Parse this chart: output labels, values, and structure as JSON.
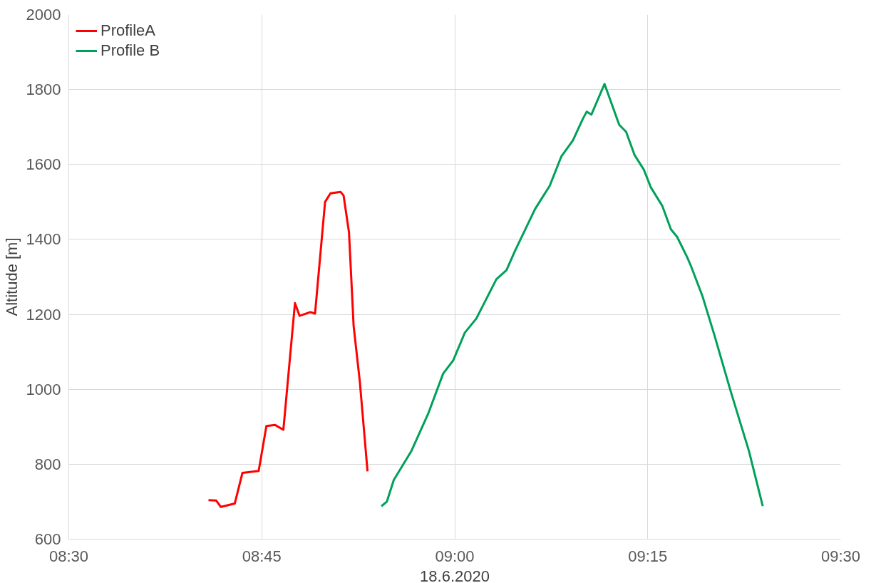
{
  "chart_data": {
    "type": "line",
    "xlabel": "18.6.2020",
    "ylabel": "Altitude [m]",
    "xlim": [
      8.5,
      9.5
    ],
    "xticks": [
      {
        "value": 8.5,
        "label": "08:30"
      },
      {
        "value": 8.75,
        "label": "08:45"
      },
      {
        "value": 9.0,
        "label": "09:00"
      },
      {
        "value": 9.25,
        "label": "09:15"
      },
      {
        "value": 9.5,
        "label": "09:30"
      }
    ],
    "ylim": [
      600,
      2000
    ],
    "yticks": [
      600,
      800,
      1000,
      1200,
      1400,
      1600,
      1800,
      2000
    ],
    "grid": true,
    "legend": "top left",
    "marker": "none",
    "line_style": "solid",
    "series": [
      {
        "name": "ProfileA",
        "color": "#ff0000",
        "x": [
          8.681,
          8.691,
          8.697,
          8.715,
          8.725,
          8.746,
          8.756,
          8.767,
          8.778,
          8.793,
          8.799,
          8.813,
          8.819,
          8.832,
          8.839,
          8.852,
          8.856,
          8.863,
          8.869,
          8.877,
          8.887
        ],
        "values": [
          704,
          703,
          686,
          695,
          777,
          782,
          902,
          905,
          892,
          1230,
          1196,
          1206,
          1202,
          1500,
          1523,
          1527,
          1517,
          1419,
          1169,
          1021,
          781
        ]
      },
      {
        "name": "Profile B",
        "color": "#00a05a",
        "x": [
          8.905,
          8.912,
          8.921,
          8.944,
          8.966,
          8.985,
          8.998,
          9.013,
          9.028,
          9.054,
          9.067,
          9.078,
          9.104,
          9.123,
          9.138,
          9.153,
          9.166,
          9.171,
          9.177,
          9.194,
          9.213,
          9.222,
          9.233,
          9.245,
          9.254,
          9.269,
          9.28,
          9.288,
          9.301,
          9.306,
          9.321,
          9.336,
          9.358,
          9.381,
          9.399
        ],
        "values": [
          688,
          700,
          758,
          836,
          937,
          1042,
          1077,
          1151,
          1189,
          1294,
          1318,
          1369,
          1481,
          1543,
          1621,
          1664,
          1722,
          1741,
          1733,
          1815,
          1706,
          1687,
          1625,
          1586,
          1539,
          1489,
          1427,
          1407,
          1353,
          1329,
          1248,
          1147,
          991,
          836,
          688
        ]
      }
    ]
  }
}
